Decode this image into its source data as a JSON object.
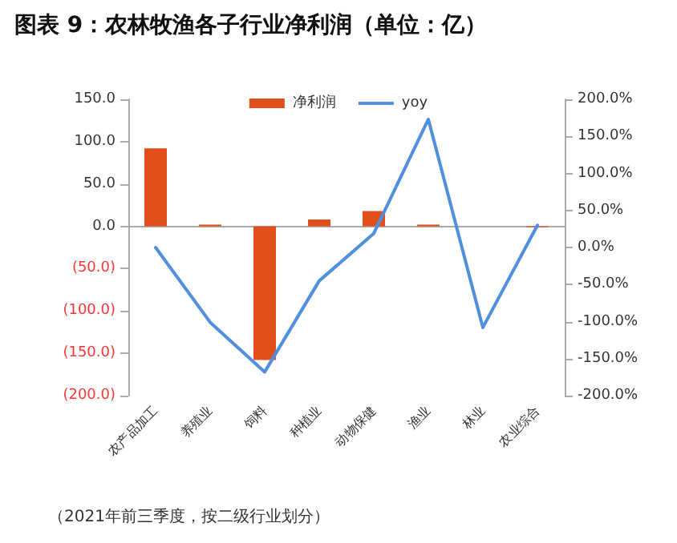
{
  "chart_data": {
    "type": "bar",
    "title": "图表 9：农林牧渔各子行业净利润（单位：亿）",
    "categories": [
      "农产品加工",
      "养殖业",
      "饲料",
      "种植业",
      "动物保健",
      "渔业",
      "林业",
      "农业综合"
    ],
    "series": [
      {
        "name": "净利润",
        "color": "#e04e1b",
        "values": [
          92,
          2,
          -158,
          8,
          18,
          2,
          0,
          -1
        ]
      },
      {
        "name": "yoy",
        "type": "line",
        "axis": "y2",
        "color": "#4f8fdd",
        "values": [
          0,
          -101,
          -168,
          -45,
          19,
          173,
          -108,
          30
        ]
      }
    ],
    "ylim": [
      -200,
      150
    ],
    "yticks": [
      {
        "value": -200,
        "label": "(200.0)"
      },
      {
        "value": -150,
        "label": "(150.0)"
      },
      {
        "value": -100,
        "label": "(100.0)"
      },
      {
        "value": -50,
        "label": "(50.0)"
      },
      {
        "value": 0,
        "label": "0.0"
      },
      {
        "value": 50,
        "label": "50.0"
      },
      {
        "value": 100,
        "label": "100.0"
      },
      {
        "value": 150,
        "label": "150.0"
      }
    ],
    "y2lim": [
      -200,
      200
    ],
    "y2ticks": [
      {
        "value": -200,
        "label": "-200.0%"
      },
      {
        "value": -150,
        "label": "-150.0%"
      },
      {
        "value": -100,
        "label": "-100.0%"
      },
      {
        "value": -50,
        "label": "-50.0%"
      },
      {
        "value": 0,
        "label": "0.0%"
      },
      {
        "value": 50,
        "label": "50.0%"
      },
      {
        "value": 100,
        "label": "100.0%"
      },
      {
        "value": 150,
        "label": "150.0%"
      },
      {
        "value": 200,
        "label": "200.0%"
      }
    ],
    "legend": "top",
    "marker": "none",
    "line_style": "solid",
    "annotations": [
      "（2021年前三季度，按二级行业划分）"
    ]
  }
}
